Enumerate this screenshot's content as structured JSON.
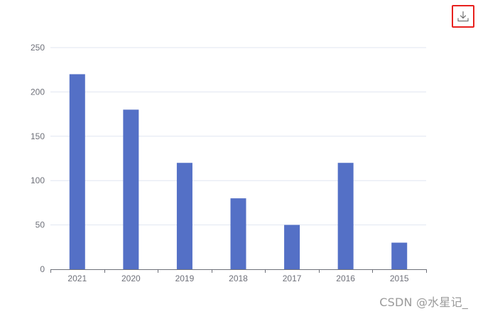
{
  "toolbox": {
    "download_icon": "download-icon"
  },
  "watermark": "CSDN @水星记_",
  "colors": {
    "bar": "#5470c6",
    "grid": "#e0e6f1",
    "axis": "#6e7079",
    "highlight": "#e8211e"
  },
  "chart_data": {
    "type": "bar",
    "categories": [
      "2021",
      "2020",
      "2019",
      "2018",
      "2017",
      "2016",
      "2015"
    ],
    "values": [
      220,
      180,
      120,
      80,
      50,
      120,
      30
    ],
    "ylim": [
      0,
      250
    ],
    "yticks": [
      0,
      50,
      100,
      150,
      200,
      250
    ],
    "title": "",
    "xlabel": "",
    "ylabel": "",
    "grid": true
  }
}
